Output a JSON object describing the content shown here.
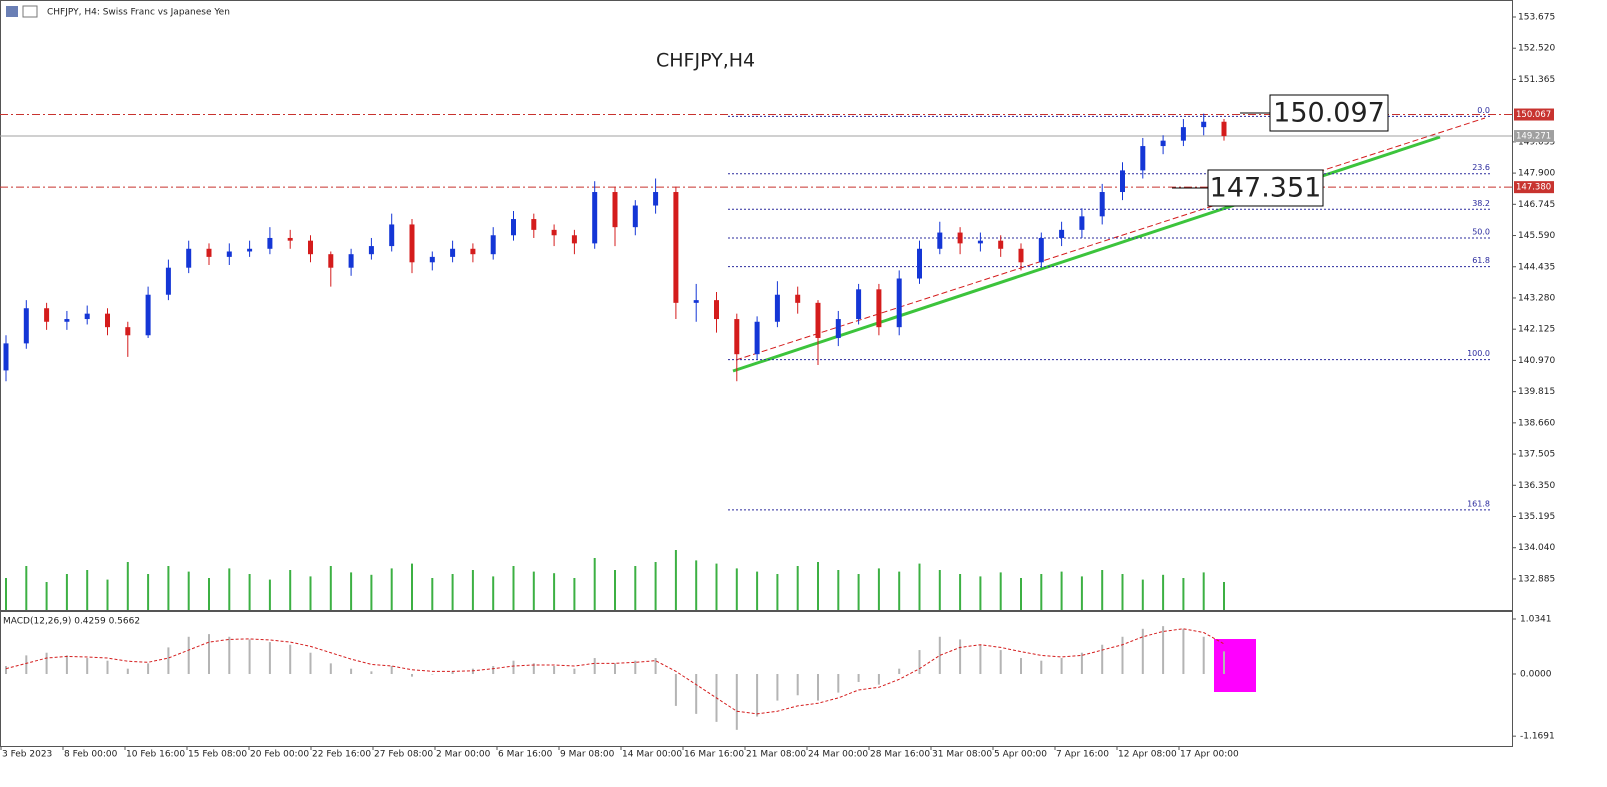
{
  "chart_data": {
    "type": "candlestick",
    "header": "CHFJPY, H4:  Swiss Franc vs Japanese Yen",
    "title": "CHFJPY,H4",
    "xticks": [
      "3 Feb 2023",
      "8 Feb 00:00",
      "10 Feb 16:00",
      "15 Feb 08:00",
      "20 Feb 00:00",
      "22 Feb 16:00",
      "27 Feb 08:00",
      "2 Mar 00:00",
      "6 Mar 16:00",
      "9 Mar 08:00",
      "14 Mar 00:00",
      "16 Mar 16:00",
      "21 Mar 08:00",
      "24 Mar 00:00",
      "28 Mar 16:00",
      "31 Mar 08:00",
      "5 Apr 00:00",
      "7 Apr 16:00",
      "12 Apr 08:00",
      "17 Apr 00:00"
    ],
    "open": [
      140.6,
      141.6,
      142.9,
      142.4,
      142.5,
      142.7,
      142.2,
      141.9,
      143.4,
      144.4,
      145.1,
      144.8,
      145.0,
      145.1,
      145.5,
      145.4,
      144.9,
      144.4,
      144.9,
      145.2,
      146.0,
      144.6,
      144.8,
      145.1,
      144.9,
      145.6,
      146.2,
      145.8,
      145.6,
      145.3,
      147.2,
      145.9,
      146.7,
      147.2,
      143.1,
      143.2,
      142.5,
      141.2,
      142.4,
      143.4,
      143.1,
      141.8,
      142.5,
      143.6,
      142.2,
      144.0,
      145.1,
      145.7,
      145.3,
      145.4,
      145.1,
      144.6,
      145.5,
      145.8,
      146.3,
      147.2,
      148.0,
      148.9,
      149.1,
      149.6,
      149.8
    ],
    "high": [
      141.9,
      143.2,
      143.1,
      142.8,
      143.0,
      142.9,
      142.4,
      143.7,
      144.7,
      145.4,
      145.3,
      145.3,
      145.4,
      145.9,
      145.8,
      145.6,
      145.0,
      145.1,
      145.5,
      146.4,
      146.2,
      145.0,
      145.4,
      145.3,
      145.9,
      146.5,
      146.4,
      146.0,
      145.8,
      147.6,
      147.4,
      146.9,
      147.7,
      147.4,
      143.8,
      143.5,
      142.7,
      142.6,
      143.9,
      143.7,
      143.2,
      142.8,
      143.8,
      143.8,
      144.3,
      145.4,
      146.1,
      145.9,
      145.7,
      145.6,
      145.3,
      145.7,
      146.1,
      146.6,
      147.5,
      148.3,
      149.2,
      149.3,
      149.9,
      150.1,
      149.9
    ],
    "low": [
      140.2,
      141.4,
      142.1,
      142.1,
      142.3,
      141.9,
      141.1,
      141.8,
      143.2,
      144.2,
      144.5,
      144.5,
      144.8,
      144.9,
      145.1,
      144.6,
      143.7,
      144.1,
      144.7,
      145.0,
      144.2,
      144.3,
      144.6,
      144.6,
      144.7,
      145.4,
      145.5,
      145.2,
      144.9,
      145.1,
      145.2,
      145.6,
      146.4,
      142.5,
      142.4,
      142.0,
      140.2,
      141.0,
      142.2,
      142.7,
      140.8,
      141.5,
      142.3,
      141.9,
      141.9,
      143.8,
      144.9,
      144.9,
      145.0,
      144.8,
      144.3,
      144.4,
      145.2,
      145.5,
      146.0,
      146.9,
      147.7,
      148.6,
      148.9,
      149.3,
      149.1
    ],
    "close": [
      141.6,
      142.9,
      142.4,
      142.5,
      142.7,
      142.2,
      141.9,
      143.4,
      144.4,
      145.1,
      144.8,
      145.0,
      145.1,
      145.5,
      145.4,
      144.9,
      144.4,
      144.9,
      145.2,
      146.0,
      144.6,
      144.8,
      145.1,
      144.9,
      145.6,
      146.2,
      145.8,
      145.6,
      145.3,
      147.2,
      145.9,
      146.7,
      147.2,
      143.1,
      143.2,
      142.5,
      141.2,
      142.4,
      143.4,
      143.1,
      141.8,
      142.5,
      143.6,
      142.2,
      144.0,
      145.1,
      145.7,
      145.3,
      145.4,
      145.1,
      144.6,
      145.5,
      145.8,
      146.3,
      147.2,
      148.0,
      148.9,
      149.1,
      149.6,
      149.8,
      149.271
    ],
    "volume": [
      40,
      55,
      35,
      45,
      50,
      38,
      60,
      45,
      55,
      48,
      40,
      52,
      45,
      38,
      50,
      42,
      55,
      47,
      44,
      52,
      58,
      40,
      45,
      50,
      42,
      55,
      48,
      46,
      40,
      65,
      50,
      55,
      60,
      75,
      62,
      58,
      52,
      48,
      45,
      55,
      60,
      50,
      45,
      52,
      48,
      58,
      50,
      45,
      42,
      47,
      40,
      45,
      48,
      42,
      50,
      45,
      38,
      44,
      40,
      47,
      35
    ],
    "bull_color": "#1436d6",
    "bear_color": "#d41c1c",
    "volume_color": "#3cb043",
    "ylim": [
      131.736,
      154.304
    ],
    "yticks": [
      153.675,
      {
        "value": 152.52,
        "label": "152.520"
      },
      151.365,
      149.055,
      {
        "value": 147.9,
        "label": "147.900"
      },
      146.745,
      {
        "value": 145.59,
        "label": "145.590"
      },
      144.435,
      {
        "value": 143.28,
        "label": "143.280"
      },
      142.125,
      {
        "value": 140.97,
        "label": "140.970"
      },
      139.815,
      {
        "value": 138.66,
        "label": "138.660"
      },
      137.505,
      {
        "value": 136.35,
        "label": "136.350"
      },
      135.195,
      {
        "value": 134.04,
        "label": "134.040"
      },
      132.885
    ],
    "levels": [
      150.067,
      {
        "value": 147.38,
        "label": "147.380"
      }
    ],
    "level_color": "#c8332f",
    "bid": 149.271,
    "fib": {
      "high": 150.0,
      "low": 141.0,
      "color": "#2b2b9e",
      "levels": [
        {
          "value": 0,
          "label": "0.0"
        },
        23.6,
        38.2,
        {
          "value": 50,
          "label": "50.0"
        },
        61.8,
        {
          "value": 100,
          "label": "100.0"
        },
        161.8
      ]
    },
    "annotations": [
      150.097,
      147.351
    ],
    "macd": {
      "label": "MACD(12,26,9) 0.4259 0.5662",
      "histogram": [
        0.15,
        0.35,
        0.4,
        0.35,
        0.3,
        0.25,
        0.1,
        0.2,
        0.5,
        0.7,
        0.75,
        0.7,
        0.65,
        0.6,
        0.55,
        0.4,
        0.2,
        0.1,
        0.05,
        0.15,
        -0.05,
        0.0,
        0.05,
        0.1,
        0.15,
        0.25,
        0.2,
        0.15,
        0.1,
        0.3,
        0.2,
        0.25,
        0.3,
        -0.6,
        -0.75,
        -0.9,
        -1.05,
        -0.8,
        -0.5,
        -0.4,
        -0.5,
        -0.35,
        -0.15,
        -0.2,
        0.1,
        0.45,
        0.7,
        0.65,
        0.55,
        0.45,
        0.3,
        0.25,
        0.3,
        0.4,
        0.55,
        0.7,
        0.85,
        0.9,
        0.85,
        0.7,
        0.4259
      ],
      "signal": [
        0.1,
        0.2,
        0.3,
        0.33,
        0.32,
        0.3,
        0.24,
        0.22,
        0.3,
        0.45,
        0.6,
        0.65,
        0.66,
        0.64,
        0.6,
        0.52,
        0.4,
        0.28,
        0.18,
        0.15,
        0.08,
        0.05,
        0.05,
        0.06,
        0.1,
        0.15,
        0.17,
        0.17,
        0.15,
        0.2,
        0.2,
        0.22,
        0.25,
        0.05,
        -0.2,
        -0.45,
        -0.7,
        -0.75,
        -0.7,
        -0.6,
        -0.55,
        -0.45,
        -0.3,
        -0.25,
        -0.1,
        0.1,
        0.35,
        0.5,
        0.55,
        0.5,
        0.42,
        0.35,
        0.32,
        0.35,
        0.45,
        0.55,
        0.7,
        0.8,
        0.85,
        0.78,
        0.5662
      ],
      "histogram_color": "#b4b4b4",
      "signal_color": "#d41c1c",
      "ylim": [
        -1.354,
        1.147
      ],
      "yticks": [
        1.0341,
        {
          "value": 0,
          "label": "0.0000"
        },
        -1.1691
      ]
    }
  }
}
